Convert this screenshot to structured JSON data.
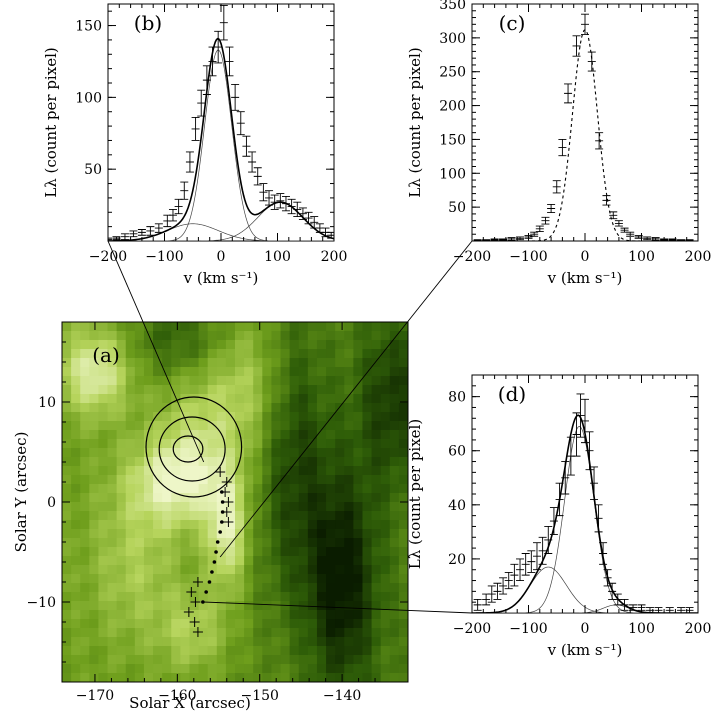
{
  "chart_data": [
    {
      "panel": "a",
      "type": "heatmap",
      "panel_label": "(a)",
      "xlabel": "Solar X (arcsec)",
      "ylabel": "Solar Y (arcsec)",
      "xticks": [
        -170,
        -160,
        -150,
        -140
      ],
      "yticks": [
        -10,
        0,
        10
      ],
      "xlim": [
        -174,
        -132
      ],
      "ylim": [
        -18,
        18
      ],
      "colormap": [
        "#0a1c00",
        "#2f5e08",
        "#6e9e1c",
        "#b6d45c",
        "#eef6c8"
      ],
      "bright_regions": [
        {
          "x": -170,
          "y": 13,
          "level": 0.9,
          "sx": 3,
          "sy": 3
        },
        {
          "x": -160,
          "y": 2,
          "level": 0.9,
          "sx": 4,
          "sy": 3
        },
        {
          "x": -154,
          "y": -3,
          "level": 0.95,
          "sx": 1.8,
          "sy": 4
        },
        {
          "x": -157,
          "y": 8,
          "level": 0.55,
          "sx": 4,
          "sy": 5
        },
        {
          "x": -151,
          "y": 12,
          "level": 0.45,
          "sx": 3,
          "sy": 5
        },
        {
          "x": -165,
          "y": -6,
          "level": 0.45,
          "sx": 4,
          "sy": 6
        },
        {
          "x": -158,
          "y": -13,
          "level": 0.5,
          "sx": 3,
          "sy": 3
        }
      ],
      "dark_regions": [
        {
          "x": -140,
          "y": -8,
          "level": 0.95,
          "sx": 3,
          "sy": 8
        },
        {
          "x": -146,
          "y": 4,
          "level": 0.6,
          "sx": 3,
          "sy": 10
        },
        {
          "x": -134,
          "y": 10,
          "level": 0.6,
          "sx": 3,
          "sy": 6
        },
        {
          "x": -160,
          "y": 16,
          "level": 0.5,
          "sx": 4,
          "sy": 3
        }
      ],
      "contours": [
        {
          "cx": -158.7,
          "cy": 5.3,
          "rx": 1.8,
          "ry": 1.3
        },
        {
          "cx": -158.2,
          "cy": 5.3,
          "rx": 4.0,
          "ry": 3.2
        },
        {
          "cx": -158.0,
          "cy": 5.5,
          "rx": 5.8,
          "ry": 5.0
        }
      ],
      "slit_points": [
        {
          "x": -154.6,
          "y": 1.0
        },
        {
          "x": -154.5,
          "y": 0.0
        },
        {
          "x": -154.5,
          "y": -1.0
        },
        {
          "x": -154.6,
          "y": -2.0
        },
        {
          "x": -154.8,
          "y": -3.0
        },
        {
          "x": -155.1,
          "y": -4.0
        },
        {
          "x": -155.3,
          "y": -5.0
        },
        {
          "x": -155.5,
          "y": -6.0
        },
        {
          "x": -155.8,
          "y": -7.0
        },
        {
          "x": -156.1,
          "y": -8.0
        },
        {
          "x": -156.5,
          "y": -9.0
        },
        {
          "x": -156.9,
          "y": -10.0
        }
      ],
      "cross_markers": [
        {
          "x": -154.8,
          "y": 3.0
        },
        {
          "x": -154.0,
          "y": 2.0
        },
        {
          "x": -154.2,
          "y": 1.0
        },
        {
          "x": -153.8,
          "y": 0.0
        },
        {
          "x": -154.0,
          "y": -1.0
        },
        {
          "x": -153.8,
          "y": -2.0
        },
        {
          "x": -157.5,
          "y": -8.0
        },
        {
          "x": -158.3,
          "y": -9.0
        },
        {
          "x": -157.8,
          "y": -10.0
        },
        {
          "x": -158.6,
          "y": -11.0
        },
        {
          "x": -157.9,
          "y": -12.0
        },
        {
          "x": -157.5,
          "y": -13.0
        }
      ],
      "connectors": [
        {
          "from": {
            "x": -156.8,
            "y": 4.0
          },
          "to_panel": "b",
          "to": {
            "x": -200,
            "y": 0
          }
        },
        {
          "from": {
            "x": -154.8,
            "y": -5.5
          },
          "to_panel": "c",
          "to": {
            "x": -200,
            "y": 0
          }
        },
        {
          "from": {
            "x": -156.8,
            "y": -10.0
          },
          "to_panel": "d",
          "to": {
            "x": -200,
            "y": 0
          }
        }
      ]
    },
    {
      "panel": "b",
      "type": "line",
      "panel_label": "(b)",
      "xlabel": "v (km s⁻¹)",
      "ylabel": "Lλ (count per pixel)",
      "xlim": [
        -200,
        200
      ],
      "ylim": [
        0,
        165
      ],
      "xticks": [
        -200,
        -100,
        0,
        100,
        200
      ],
      "yticks": [
        50,
        100,
        150
      ],
      "components": [
        {
          "amp": 133,
          "center": -5,
          "sigma": 24
        },
        {
          "amp": 12,
          "center": -50,
          "sigma": 45
        },
        {
          "amp": 27,
          "center": 105,
          "sigma": 40
        }
      ],
      "data": [
        {
          "v": -200,
          "y": 1,
          "err": 1
        },
        {
          "v": -185,
          "y": 2,
          "err": 1
        },
        {
          "v": -170,
          "y": 3,
          "err": 2
        },
        {
          "v": -155,
          "y": 5,
          "err": 2
        },
        {
          "v": -140,
          "y": 6,
          "err": 2
        },
        {
          "v": -125,
          "y": 7,
          "err": 3
        },
        {
          "v": -110,
          "y": 9,
          "err": 3
        },
        {
          "v": -95,
          "y": 14,
          "err": 4
        },
        {
          "v": -85,
          "y": 18,
          "err": 4
        },
        {
          "v": -75,
          "y": 24,
          "err": 5
        },
        {
          "v": -65,
          "y": 35,
          "err": 6
        },
        {
          "v": -55,
          "y": 55,
          "err": 7
        },
        {
          "v": -45,
          "y": 78,
          "err": 8
        },
        {
          "v": -35,
          "y": 96,
          "err": 9
        },
        {
          "v": -25,
          "y": 112,
          "err": 10
        },
        {
          "v": -15,
          "y": 125,
          "err": 10
        },
        {
          "v": -5,
          "y": 135,
          "err": 11
        },
        {
          "v": 5,
          "y": 152,
          "err": 12
        },
        {
          "v": 15,
          "y": 125,
          "err": 10
        },
        {
          "v": 25,
          "y": 100,
          "err": 9
        },
        {
          "v": 35,
          "y": 82,
          "err": 8
        },
        {
          "v": 45,
          "y": 66,
          "err": 7
        },
        {
          "v": 55,
          "y": 55,
          "err": 7
        },
        {
          "v": 65,
          "y": 45,
          "err": 6
        },
        {
          "v": 75,
          "y": 34,
          "err": 6
        },
        {
          "v": 85,
          "y": 30,
          "err": 5
        },
        {
          "v": 95,
          "y": 27,
          "err": 5
        },
        {
          "v": 105,
          "y": 28,
          "err": 5
        },
        {
          "v": 115,
          "y": 26,
          "err": 5
        },
        {
          "v": 125,
          "y": 24,
          "err": 5
        },
        {
          "v": 135,
          "y": 22,
          "err": 5
        },
        {
          "v": 145,
          "y": 19,
          "err": 4
        },
        {
          "v": 155,
          "y": 16,
          "err": 4
        },
        {
          "v": 165,
          "y": 13,
          "err": 4
        },
        {
          "v": 175,
          "y": 9,
          "err": 3
        },
        {
          "v": 185,
          "y": 6,
          "err": 3
        },
        {
          "v": 195,
          "y": 4,
          "err": 2
        }
      ]
    },
    {
      "panel": "c",
      "type": "line",
      "panel_label": "(c)",
      "xlabel": "v (km s⁻¹)",
      "ylabel": "Lλ (count per pixel)",
      "xlim": [
        -200,
        200
      ],
      "ylim": [
        0,
        350
      ],
      "xticks": [
        -200,
        -100,
        0,
        100,
        200
      ],
      "yticks": [
        50,
        100,
        150,
        200,
        250,
        300,
        350
      ],
      "fit_style": "dashed",
      "components": [
        {
          "amp": 312,
          "center": 0,
          "sigma": 22
        }
      ],
      "data": [
        {
          "v": -190,
          "y": 1,
          "err": 1
        },
        {
          "v": -175,
          "y": 1,
          "err": 1
        },
        {
          "v": -160,
          "y": 2,
          "err": 1
        },
        {
          "v": -145,
          "y": 2,
          "err": 1
        },
        {
          "v": -130,
          "y": 3,
          "err": 2
        },
        {
          "v": -115,
          "y": 4,
          "err": 2
        },
        {
          "v": -100,
          "y": 6,
          "err": 2
        },
        {
          "v": -90,
          "y": 10,
          "err": 3
        },
        {
          "v": -80,
          "y": 18,
          "err": 4
        },
        {
          "v": -70,
          "y": 30,
          "err": 5
        },
        {
          "v": -60,
          "y": 48,
          "err": 6
        },
        {
          "v": -50,
          "y": 80,
          "err": 9
        },
        {
          "v": -40,
          "y": 138,
          "err": 12
        },
        {
          "v": -30,
          "y": 218,
          "err": 14
        },
        {
          "v": -15,
          "y": 288,
          "err": 15
        },
        {
          "v": 0,
          "y": 320,
          "err": 15
        },
        {
          "v": 12,
          "y": 265,
          "err": 14
        },
        {
          "v": 25,
          "y": 148,
          "err": 12
        },
        {
          "v": 38,
          "y": 60,
          "err": 7
        },
        {
          "v": 50,
          "y": 38,
          "err": 5
        },
        {
          "v": 60,
          "y": 26,
          "err": 4
        },
        {
          "v": 70,
          "y": 16,
          "err": 3
        },
        {
          "v": 80,
          "y": 10,
          "err": 3
        },
        {
          "v": 95,
          "y": 6,
          "err": 2
        },
        {
          "v": 110,
          "y": 4,
          "err": 2
        },
        {
          "v": 125,
          "y": 3,
          "err": 2
        },
        {
          "v": 140,
          "y": 2,
          "err": 1
        },
        {
          "v": 155,
          "y": 2,
          "err": 1
        },
        {
          "v": 170,
          "y": 1,
          "err": 1
        },
        {
          "v": 185,
          "y": 1,
          "err": 1
        }
      ]
    },
    {
      "panel": "d",
      "type": "line",
      "panel_label": "(d)",
      "xlabel": "v (km s⁻¹)",
      "ylabel": "Lλ (count per pixel)",
      "xlim": [
        -200,
        200
      ],
      "ylim": [
        0,
        88
      ],
      "xticks": [
        -200,
        -100,
        0,
        100,
        200
      ],
      "yticks": [
        20,
        40,
        60,
        80
      ],
      "components": [
        {
          "amp": 69,
          "center": -10,
          "sigma": 26
        },
        {
          "amp": 17,
          "center": -65,
          "sigma": 32
        },
        {
          "amp": 3,
          "center": 55,
          "sigma": 22
        }
      ],
      "data": [
        {
          "v": -190,
          "y": 3,
          "err": 2
        },
        {
          "v": -175,
          "y": 5,
          "err": 2
        },
        {
          "v": -165,
          "y": 7,
          "err": 3
        },
        {
          "v": -155,
          "y": 8,
          "err": 3
        },
        {
          "v": -145,
          "y": 10,
          "err": 3
        },
        {
          "v": -135,
          "y": 12,
          "err": 3
        },
        {
          "v": -125,
          "y": 14,
          "err": 4
        },
        {
          "v": -115,
          "y": 16,
          "err": 4
        },
        {
          "v": -105,
          "y": 18,
          "err": 4
        },
        {
          "v": -95,
          "y": 19,
          "err": 4
        },
        {
          "v": -85,
          "y": 21,
          "err": 5
        },
        {
          "v": -75,
          "y": 23,
          "err": 5
        },
        {
          "v": -65,
          "y": 27,
          "err": 5
        },
        {
          "v": -55,
          "y": 34,
          "err": 5
        },
        {
          "v": -45,
          "y": 42,
          "err": 6
        },
        {
          "v": -35,
          "y": 50,
          "err": 6
        },
        {
          "v": -25,
          "y": 58,
          "err": 7
        },
        {
          "v": -15,
          "y": 66,
          "err": 8
        },
        {
          "v": -8,
          "y": 73,
          "err": 8
        },
        {
          "v": 0,
          "y": 71,
          "err": 8
        },
        {
          "v": 8,
          "y": 60,
          "err": 7
        },
        {
          "v": 16,
          "y": 48,
          "err": 6
        },
        {
          "v": 24,
          "y": 35,
          "err": 5
        },
        {
          "v": 32,
          "y": 22,
          "err": 4
        },
        {
          "v": 40,
          "y": 13,
          "err": 3
        },
        {
          "v": 48,
          "y": 8,
          "err": 3
        },
        {
          "v": 58,
          "y": 5,
          "err": 2
        },
        {
          "v": 70,
          "y": 3,
          "err": 2
        },
        {
          "v": 85,
          "y": 2,
          "err": 1
        },
        {
          "v": 100,
          "y": 2,
          "err": 1
        },
        {
          "v": 115,
          "y": 1,
          "err": 1
        },
        {
          "v": 130,
          "y": 1,
          "err": 1
        },
        {
          "v": 150,
          "y": 1,
          "err": 1
        },
        {
          "v": 170,
          "y": 1,
          "err": 1
        },
        {
          "v": 185,
          "y": 1,
          "err": 1
        }
      ]
    }
  ]
}
